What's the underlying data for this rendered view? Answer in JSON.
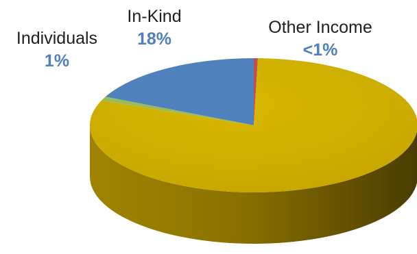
{
  "chart_data": {
    "type": "pie",
    "title": "",
    "three_d": true,
    "legend": "none",
    "slices": [
      {
        "name": "Other Income",
        "value": 0.4,
        "label": "<1%",
        "color": "#c0504d"
      },
      {
        "name": "",
        "value": 80.6,
        "label": "",
        "color": "#d1b000"
      },
      {
        "name": "Individuals",
        "value": 1,
        "label": "1%",
        "color": "#9bbb59"
      },
      {
        "name": "In-Kind",
        "value": 18,
        "label": "18%",
        "color": "#4f81bd"
      }
    ]
  }
}
